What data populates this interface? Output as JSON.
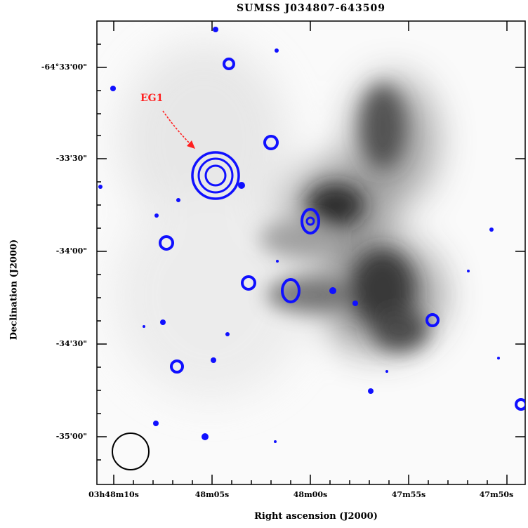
{
  "figure": {
    "title": "SUMSS J034807-643509",
    "x_axis_label": "Right ascension (J2000)",
    "y_axis_label": "Declination (J2000)",
    "x_ticks": [
      "03h48m10s",
      "48m05s",
      "48m00s",
      "47m55s",
      "47m50s"
    ],
    "y_ticks": [
      "-64°33'00\"",
      "-33'30\"",
      "-34'00\"",
      "-34'30\"",
      "-35'00\""
    ],
    "annotation": "EG1",
    "colors": {
      "contour": "#1010ff",
      "annotation": "#ff2020",
      "frame": "#000000"
    }
  }
}
